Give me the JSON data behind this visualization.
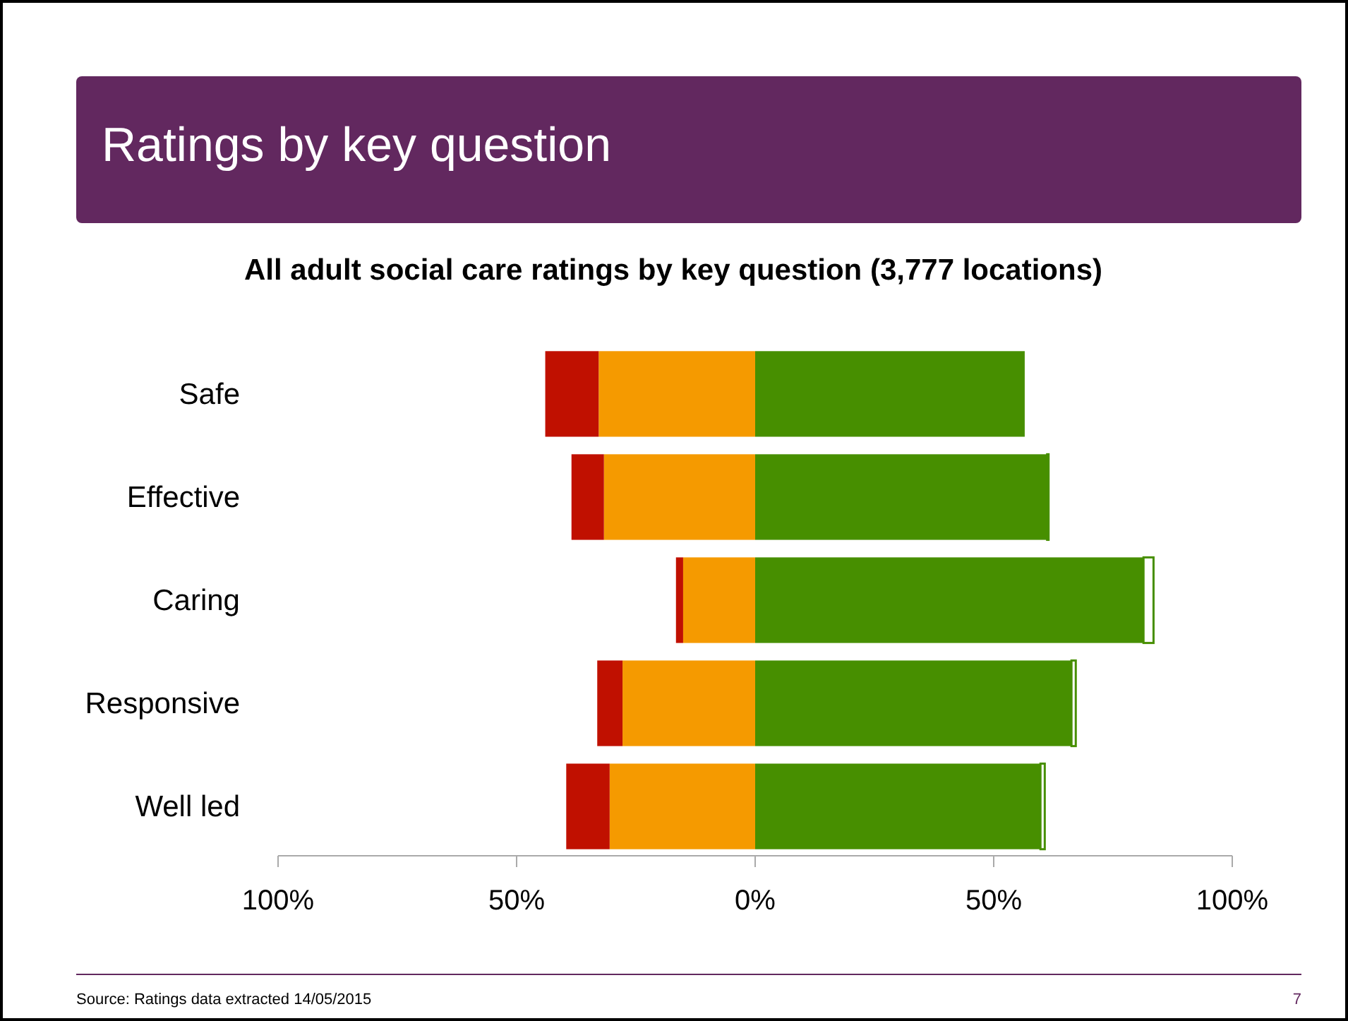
{
  "chart_data": {
    "type": "bar",
    "orientation": "horizontal",
    "stacked": true,
    "title": "Ratings by key question",
    "subtitle": "All adult social care ratings by key question (3,777 locations)",
    "categories": [
      "Safe",
      "Effective",
      "Caring",
      "Responsive",
      "Well led"
    ],
    "series": [
      {
        "color": "#f59a00",
        "values": [
          -32.8,
          -31.7,
          -15.1,
          -27.8,
          -30.5
        ]
      },
      {
        "color": "#c01000",
        "values": [
          -11.2,
          -6.8,
          -1.5,
          -5.3,
          -9.1
        ]
      },
      {
        "color": "#478f00",
        "values": [
          56.5,
          61.2,
          81.4,
          66.3,
          59.8
        ]
      },
      {
        "color": "#ffffff",
        "values": [
          0,
          0.3,
          2.1,
          0.9,
          0.9
        ]
      }
    ],
    "xlim": [
      -100,
      100
    ],
    "xticks": [
      {
        "value": -100,
        "label": "100%"
      },
      {
        "value": -50,
        "label": "50%"
      },
      {
        "value": 0,
        "label": "0%"
      },
      {
        "value": 50,
        "label": "50%"
      },
      {
        "value": 100,
        "label": "100%"
      }
    ],
    "grid": false,
    "annotations": [
      "Source: Ratings data extracted 14/05/2015",
      "7"
    ]
  }
}
